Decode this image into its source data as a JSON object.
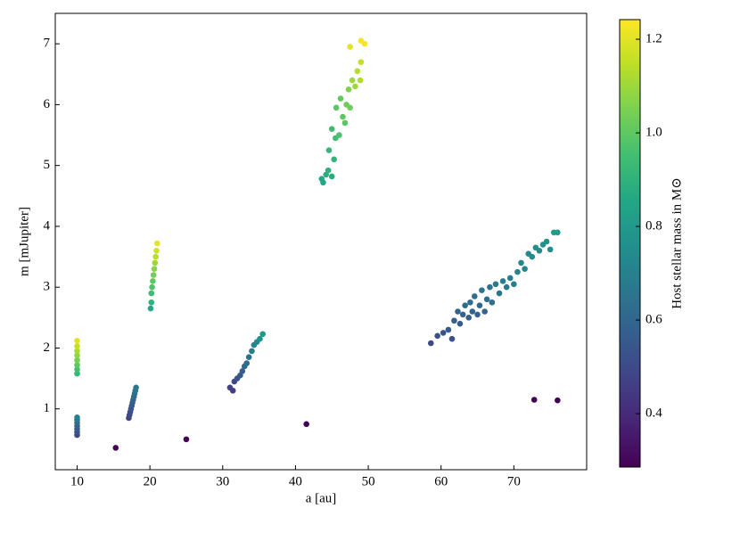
{
  "chart_data": {
    "type": "scatter",
    "xlabel": "a [au]",
    "ylabel": "m [mJupiter]",
    "xlim": [
      7,
      80
    ],
    "ylim": [
      0,
      7.5
    ],
    "xticks": [
      10,
      20,
      30,
      40,
      50,
      60,
      70
    ],
    "yticks": [
      1,
      2,
      3,
      4,
      5,
      6,
      7
    ],
    "x": [
      10,
      10,
      10,
      10,
      10,
      10,
      10,
      10,
      10,
      10,
      10,
      10,
      10,
      10,
      10,
      17.1,
      17.2,
      17.3,
      17.4,
      17.5,
      17.6,
      17.7,
      17.8,
      17.9,
      18.0,
      18.1,
      20.1,
      20.2,
      20.2,
      20.3,
      20.4,
      20.5,
      20.6,
      20.7,
      20.8,
      20.9,
      21.0,
      31.0,
      31.4,
      31.6,
      32.0,
      32.4,
      32.7,
      33.0,
      33.3,
      33.6,
      34.0,
      34.3,
      34.7,
      35.1,
      35.5,
      43.6,
      43.8,
      44.2,
      44.5,
      45.0,
      44.6,
      45.3,
      45.0,
      45.5,
      46.0,
      45.6,
      46.2,
      46.5,
      47.0,
      46.8,
      47.5,
      47.3,
      47.8,
      48.2,
      48.5,
      48.9,
      49.0,
      47.5,
      49.0,
      49.5,
      58.6,
      59.5,
      60.3,
      61.0,
      61.5,
      61.8,
      62.3,
      62.6,
      63.0,
      63.3,
      63.8,
      64.0,
      64.3,
      64.6,
      65.0,
      65.3,
      65.6,
      66.0,
      66.3,
      66.7,
      67.0,
      67.5,
      68.0,
      68.5,
      69.0,
      69.5,
      70.0,
      70.5,
      71.0,
      71.5,
      72.0,
      72.5,
      73.0,
      73.5,
      74.0,
      74.5,
      75.0,
      75.5,
      76.0,
      15.3,
      25.0,
      41.5,
      72.8,
      76.0
    ],
    "values": [
      0.57,
      0.62,
      0.67,
      0.72,
      0.77,
      0.82,
      0.86,
      1.58,
      1.65,
      1.72,
      1.8,
      1.88,
      1.95,
      2.03,
      2.12,
      0.85,
      0.9,
      0.95,
      1.0,
      1.05,
      1.1,
      1.15,
      1.2,
      1.25,
      1.3,
      1.35,
      2.65,
      2.75,
      2.9,
      3.0,
      3.1,
      3.2,
      3.3,
      3.4,
      3.5,
      3.6,
      3.72,
      1.35,
      1.3,
      1.45,
      1.5,
      1.55,
      1.62,
      1.7,
      1.75,
      1.85,
      1.95,
      2.05,
      2.1,
      2.15,
      2.23,
      4.78,
      4.72,
      4.85,
      4.92,
      4.82,
      5.25,
      5.1,
      5.6,
      5.45,
      5.5,
      5.95,
      6.1,
      5.8,
      6.0,
      5.7,
      5.95,
      6.25,
      6.4,
      6.3,
      6.55,
      6.4,
      6.7,
      6.95,
      7.05,
      7.0,
      2.08,
      2.2,
      2.25,
      2.3,
      2.15,
      2.45,
      2.6,
      2.4,
      2.55,
      2.7,
      2.5,
      2.75,
      2.6,
      2.85,
      2.55,
      2.7,
      2.95,
      2.6,
      2.8,
      3.0,
      2.75,
      3.05,
      2.9,
      3.1,
      3.0,
      3.15,
      3.05,
      3.25,
      3.4,
      3.3,
      3.55,
      3.5,
      3.65,
      3.6,
      3.7,
      3.75,
      3.62,
      3.9,
      3.9,
      0.36,
      0.5,
      0.75,
      1.15,
      1.14
    ],
    "color_values": [
      0.5,
      0.52,
      0.55,
      0.58,
      0.62,
      0.66,
      0.7,
      0.92,
      0.96,
      1.0,
      1.04,
      1.08,
      1.12,
      1.16,
      1.2,
      0.47,
      0.49,
      0.51,
      0.53,
      0.55,
      0.57,
      0.59,
      0.61,
      0.63,
      0.65,
      0.67,
      0.86,
      0.9,
      0.94,
      0.97,
      1.0,
      1.04,
      1.07,
      1.1,
      1.14,
      1.17,
      1.21,
      0.48,
      0.46,
      0.5,
      0.52,
      0.55,
      0.57,
      0.6,
      0.62,
      0.65,
      0.68,
      0.72,
      0.74,
      0.77,
      0.8,
      0.86,
      0.85,
      0.88,
      0.9,
      0.87,
      0.92,
      0.91,
      0.94,
      0.95,
      0.97,
      0.99,
      1.01,
      1.0,
      1.03,
      0.99,
      1.03,
      1.06,
      1.1,
      1.1,
      1.13,
      1.13,
      1.16,
      1.2,
      1.23,
      1.23,
      0.5,
      0.52,
      0.53,
      0.55,
      0.52,
      0.57,
      0.59,
      0.56,
      0.58,
      0.61,
      0.57,
      0.62,
      0.59,
      0.63,
      0.58,
      0.61,
      0.65,
      0.6,
      0.63,
      0.66,
      0.63,
      0.67,
      0.65,
      0.68,
      0.67,
      0.69,
      0.68,
      0.71,
      0.73,
      0.72,
      0.75,
      0.74,
      0.76,
      0.75,
      0.77,
      0.77,
      0.76,
      0.8,
      0.8,
      0.29,
      0.29,
      0.29,
      0.29,
      0.29
    ],
    "colorbar": {
      "label": "Host stellar mass in M⊙",
      "colormap": "viridis",
      "lim": [
        0.286,
        1.242
      ],
      "ticks": [
        0.4,
        0.6,
        0.8,
        {
          "value": 1,
          "label": "1.0"
        },
        1.2
      ]
    }
  }
}
